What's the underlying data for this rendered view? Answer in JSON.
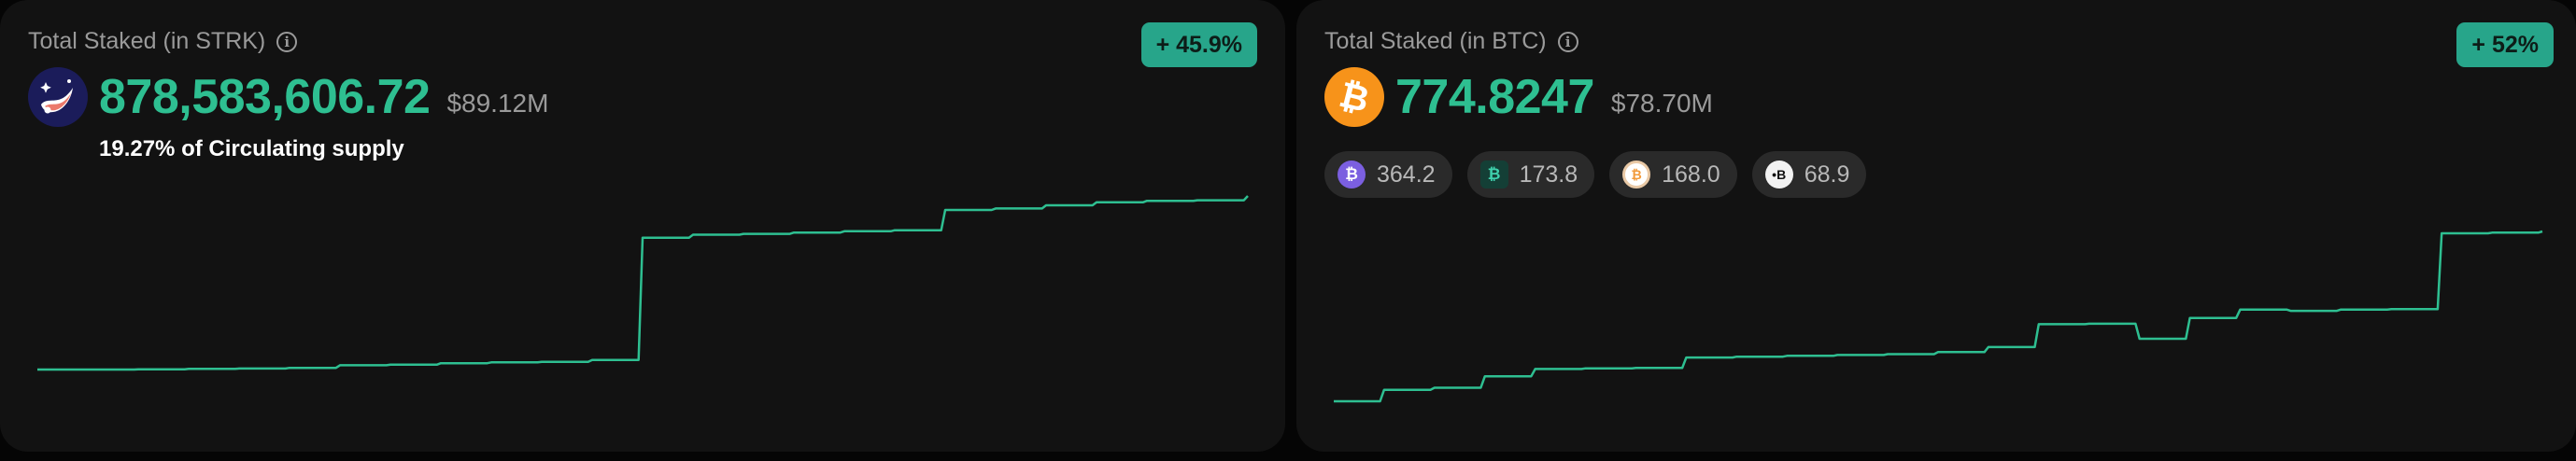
{
  "cards": [
    {
      "title": "Total Staked (in STRK)",
      "title_icon": "info-circle-icon",
      "change": "+ 45.9%",
      "token_icon": "starknet-logo-icon",
      "value": "878,583,606.72",
      "usd_value": "$89.12M",
      "supply_text": "19.27% of Circulating supply",
      "accent_color": "#2ebf91"
    },
    {
      "title": "Total Staked (in BTC)",
      "title_icon": "info-circle-icon",
      "change": "+ 52%",
      "token_icon": "bitcoin-logo-icon",
      "value": "774.8247",
      "usd_value": "$78.70M",
      "accent_color": "#2ebf91",
      "tokens": [
        {
          "icon": "wrapped-btc-purple-icon",
          "value": "364.2",
          "color": "#7b5fe0"
        },
        {
          "icon": "btc-teal-icon",
          "value": "173.8",
          "color": "#1fa889"
        },
        {
          "icon": "btc-orange-ring-icon",
          "value": "168.0",
          "color": "#f29a3a"
        },
        {
          "icon": "btc-black-white-icon",
          "value": "68.9",
          "color": "#f2f2f2"
        }
      ]
    }
  ],
  "chart_data": [
    {
      "type": "line",
      "series": [
        {
          "values": [
            0.0,
            0.0,
            0.1,
            0.3,
            0.5,
            0.8,
            2.0,
            2.3,
            3.0,
            3.4,
            3.6,
            4.5,
            62.0,
            63.4,
            63.8,
            64.4,
            65.0,
            65.5,
            75.0,
            75.7,
            77.2,
            78.6,
            79.3,
            79.6,
            81.6
          ]
        }
      ]
    },
    {
      "type": "line",
      "series": [
        {
          "values": [
            0.0,
            5.5,
            6.5,
            12.0,
            15.5,
            15.8,
            16.0,
            21.0,
            21.4,
            21.8,
            22.2,
            22.6,
            23.6,
            26.0,
            37.0,
            37.2,
            30.0,
            40.0,
            44.0,
            43.4,
            44.0,
            44.2,
            80.6,
            80.9,
            81.5
          ]
        }
      ]
    }
  ]
}
